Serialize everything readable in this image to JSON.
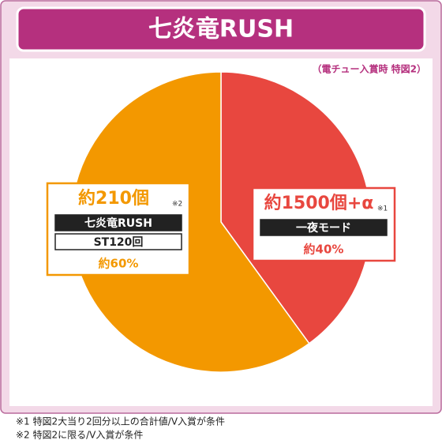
{
  "chart_data": {
    "type": "pie",
    "title": "七炎竜RUSH",
    "subtitle": "（電チュー入賞時 特図2）",
    "values": [
      40,
      60
    ],
    "value_labels": [
      "約40%",
      "約60%"
    ],
    "colors": [
      "#e8473f",
      "#f39800"
    ],
    "annotations": [
      {
        "amount": "約1500個+α",
        "note": "※1",
        "modes": [
          "一夜モード"
        ]
      },
      {
        "amount": "約210個",
        "note": "※2",
        "modes": [
          "七炎竜RUSH",
          "ST120回"
        ]
      }
    ],
    "footnotes": [
      "※1 特図2大当り2回分以上の合計値/V入賞が条件",
      "※2 特図2に限る/V入賞が条件"
    ]
  }
}
